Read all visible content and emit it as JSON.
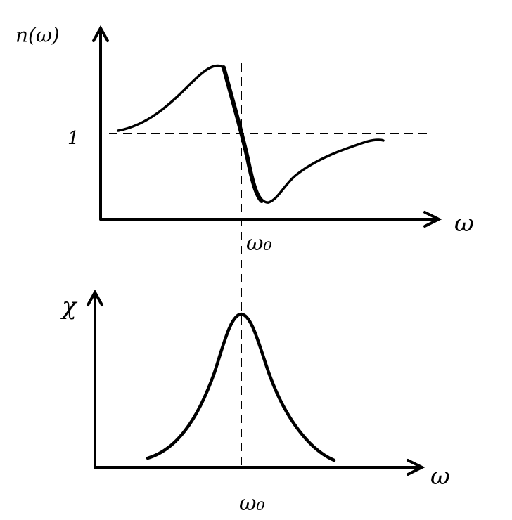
{
  "panels": [
    {
      "y_label": "n(ω)",
      "y_tick": "1",
      "x_label": "ω",
      "marker": "ω₀"
    },
    {
      "y_label": "χ",
      "x_label": "ω",
      "marker": "ω₀"
    }
  ]
}
